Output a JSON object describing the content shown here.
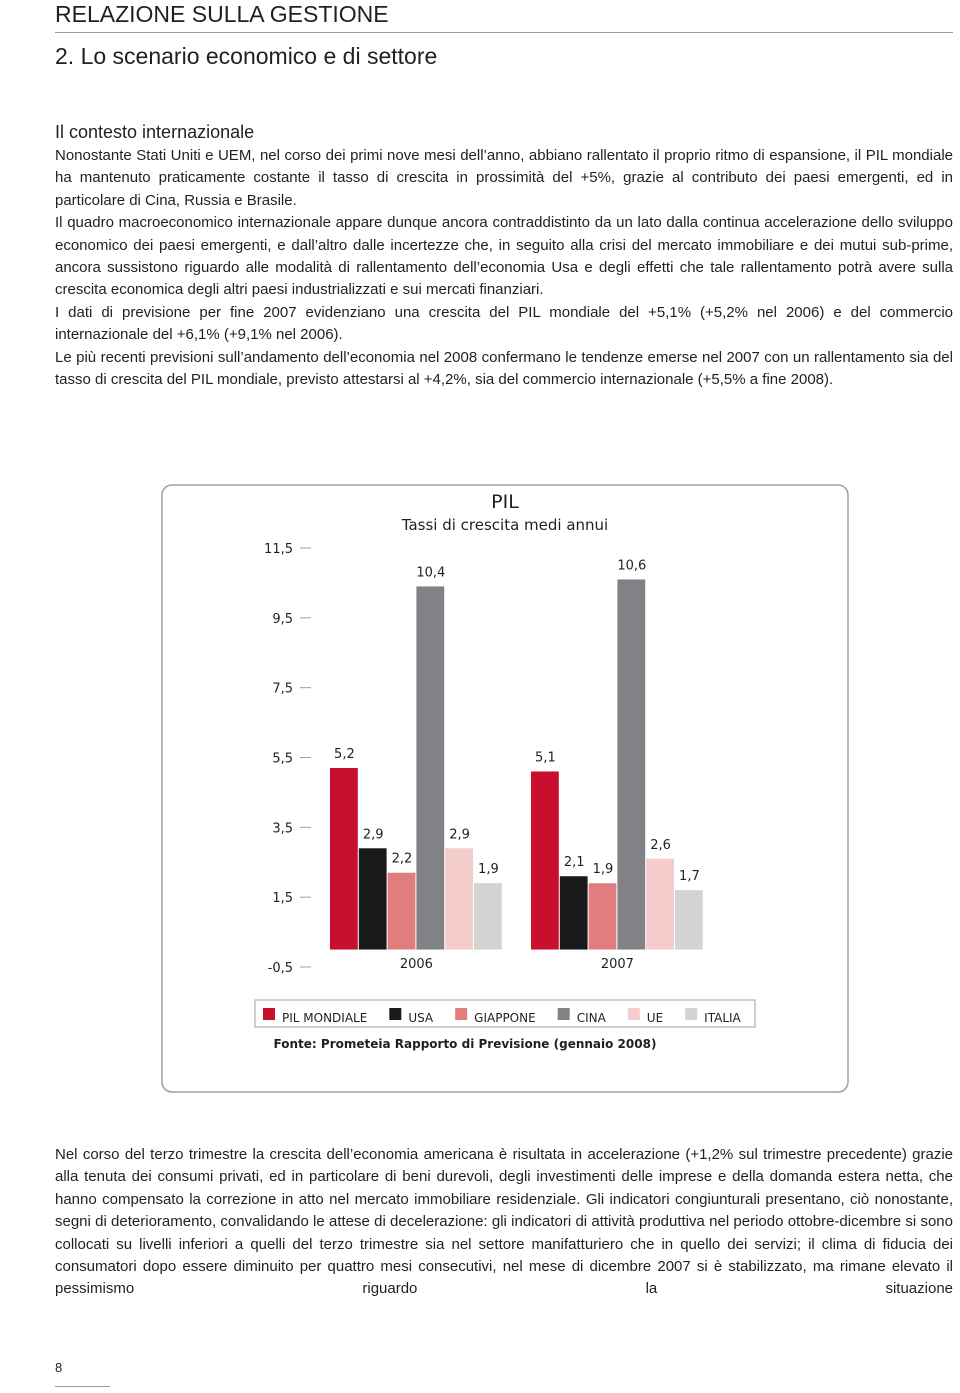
{
  "header": {
    "title": "RELAZIONE SULLA GESTIONE",
    "section": "2. Lo scenario economico e di settore"
  },
  "heading": "Il contesto internazionale",
  "paragraphs": [
    "Nonostante Stati Uniti e UEM, nel corso dei primi nove mesi dell’anno, abbiano rallentato il proprio ritmo di espansione, il PIL mondiale ha mantenuto praticamente costante il tasso di crescita in prossimità del +5%, grazie al contributo dei paesi emergenti, ed in particolare di Cina, Russia e Brasile.",
    "Il quadro macroeconomico internazionale appare dunque ancora contraddistinto da un lato dalla continua accelerazione dello sviluppo economico dei paesi emergenti, e dall’altro dalle incertezze che, in seguito alla crisi del mercato immobiliare e dei mutui sub-prime, ancora sussistono riguardo alle modalità di rallentamento dell’economia Usa e degli effetti che tale rallentamento potrà avere sulla crescita economica degli altri paesi industrializzati e sui mercati finanziari.",
    "I dati di previsione per fine 2007 evidenziano una crescita del PIL mondiale del +5,1% (+5,2% nel 2006) e del commercio internazionale del +6,1% (+9,1% nel 2006).",
    "Le più recenti previsioni sull’andamento dell’economia nel 2008 confermano le tendenze emerse nel 2007 con un rallentamento sia del tasso di crescita del PIL mondiale, previsto attestarsi al +4,2%, sia del commercio internazionale (+5,5% a fine 2008)."
  ],
  "chart_data": {
    "type": "bar",
    "title": "PIL",
    "subtitle": "Tassi di crescita medi annui",
    "source": "Fonte: Prometeia Rapporto di Previsione (gennaio 2008)",
    "categories": [
      "2006",
      "2007"
    ],
    "series": [
      {
        "name": "PIL MONDIALE",
        "color": "#c8102e",
        "values": [
          5.2,
          5.1
        ],
        "value_labels": [
          "5,2",
          "5,1"
        ]
      },
      {
        "name": "USA",
        "color": "#1a1a1a",
        "values": [
          2.9,
          2.1
        ],
        "value_labels": [
          "2,9",
          "2,1"
        ]
      },
      {
        "name": "GIAPPONE",
        "color": "#e27d7f",
        "values": [
          2.2,
          1.9
        ],
        "value_labels": [
          "2,2",
          "1,9"
        ]
      },
      {
        "name": "CINA",
        "color": "#818285",
        "values": [
          10.4,
          10.6
        ],
        "value_labels": [
          "10,4",
          "10,6"
        ]
      },
      {
        "name": "UE",
        "color": "#f3cccb",
        "values": [
          2.9,
          2.6
        ],
        "value_labels": [
          "2,9",
          "2,6"
        ]
      },
      {
        "name": "ITALIA",
        "color": "#d3d3d4",
        "values": [
          1.9,
          1.7
        ],
        "value_labels": [
          "1,9",
          "1,7"
        ]
      }
    ],
    "ylim": [
      -0.5,
      11.5
    ],
    "yticks": [
      {
        "value": -0.5,
        "label": "-0,5"
      },
      {
        "value": 1.5,
        "label": "1,5"
      },
      {
        "value": 3.5,
        "label": "3,5"
      },
      {
        "value": 5.5,
        "label": "5,5"
      },
      {
        "value": 7.5,
        "label": "7,5"
      },
      {
        "value": 9.5,
        "label": "9,5"
      },
      {
        "value": 11.5,
        "label": "11,5"
      }
    ],
    "grid": false
  },
  "body2": "Nel corso del terzo trimestre la crescita dell’economia americana è risultata in accelerazione (+1,2% sul trimestre precedente) grazie alla tenuta dei consumi privati, ed in particolare di beni durevoli, degli investimenti delle imprese e della domanda estera netta, che hanno compensato la correzione in atto nel mercato immobiliare residenziale. Gli indicatori congiunturali presentano, ciò nonostante, segni di deterioramento, convalidando le attese di decelerazione: gli indicatori di attività produttiva nel periodo ottobre-dicembre si sono collocati su livelli inferiori a quelli del terzo trimestre sia nel settore manifatturiero che in quello dei servizi; il clima di fiducia dei consumatori dopo essere diminuito per quattro mesi consecutivi, nel mese di dicembre 2007 si è stabilizzato, ma rimane elevato il pessimismo riguardo la situazione",
  "page_number": "8"
}
